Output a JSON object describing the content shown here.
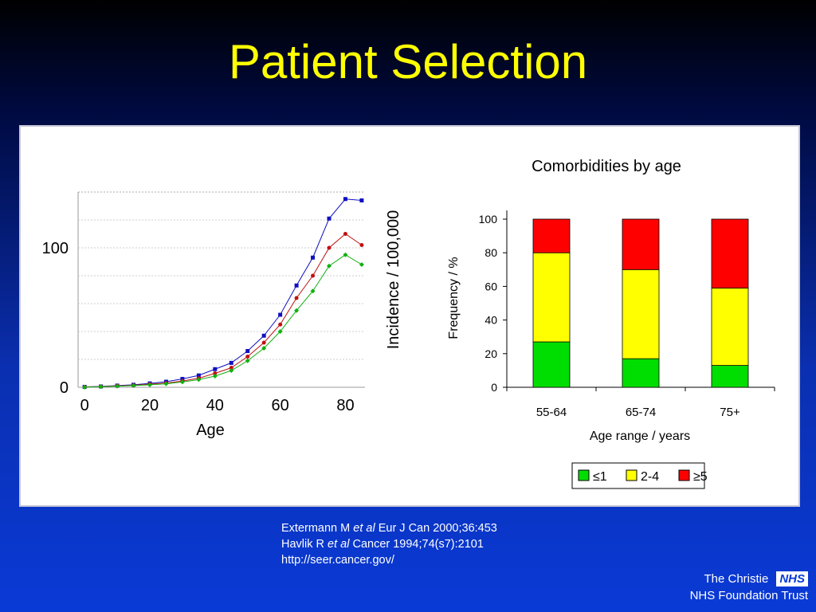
{
  "slide": {
    "title": "Patient Selection"
  },
  "references": {
    "line1": {
      "author": "Extermann M",
      "etal": "et al",
      "source": "Eur J Can 2000;36:453"
    },
    "line2": {
      "author": "Havlik R",
      "etal": "et al",
      "source": "Cancer 1994;74(s7):2101"
    },
    "line3": "http://seer.cancer.gov/"
  },
  "footer": {
    "org": "The Christie",
    "badge": "NHS",
    "trust": "NHS Foundation Trust"
  },
  "colors": {
    "title": "#ffff00",
    "blue_series": "#1010c0",
    "red_series": "#c01010",
    "green_series": "#10b010",
    "bar_green": "#00dd00",
    "bar_yellow": "#ffff00",
    "bar_red": "#ff0000"
  },
  "chart_data": [
    {
      "type": "line",
      "title": "",
      "xlabel": "Age",
      "ylabel": "Incidence / 100,000",
      "xlim": [
        -2,
        86
      ],
      "ylim": [
        0,
        140
      ],
      "xticks": [
        0,
        20,
        40,
        60,
        80
      ],
      "yticks": [
        0,
        100
      ],
      "x": [
        0,
        5,
        10,
        15,
        20,
        25,
        30,
        35,
        40,
        45,
        50,
        55,
        60,
        65,
        70,
        75,
        80,
        85
      ],
      "series": [
        {
          "color": "#1010c0",
          "marker": "square",
          "values": [
            0.3,
            0.6,
            1.2,
            1.8,
            2.8,
            4,
            6,
            8.5,
            13,
            17.5,
            26,
            37,
            52,
            73,
            93,
            121,
            135,
            134
          ]
        },
        {
          "color": "#c01010",
          "marker": "circle",
          "values": [
            0.2,
            0.5,
            1,
            1.4,
            2.2,
            3,
            4.5,
            6.5,
            10,
            14,
            22,
            32,
            45,
            64,
            80,
            100,
            110,
            102
          ]
        },
        {
          "color": "#10b010",
          "marker": "diamond",
          "values": [
            0.1,
            0.4,
            0.8,
            1.2,
            1.8,
            2.5,
            3.8,
            5.5,
            8,
            12,
            19,
            28,
            40,
            55,
            69,
            87,
            95,
            88
          ]
        }
      ]
    },
    {
      "type": "bar",
      "stacked": true,
      "title": "Comorbidities by age",
      "xlabel": "Age range / years",
      "ylabel": "Frequency / %",
      "ylim": [
        0,
        100
      ],
      "yticks": [
        0,
        20,
        40,
        60,
        80,
        100
      ],
      "categories": [
        "55-64",
        "65-74",
        "75+"
      ],
      "legend_position": "bottom",
      "series": [
        {
          "name": "≤1",
          "color": "#00dd00",
          "values": [
            27,
            17,
            13
          ]
        },
        {
          "name": "2-4",
          "color": "#ffff00",
          "values": [
            53,
            53,
            46
          ]
        },
        {
          "name": "≥5",
          "color": "#ff0000",
          "values": [
            20,
            30,
            41
          ]
        }
      ]
    }
  ]
}
